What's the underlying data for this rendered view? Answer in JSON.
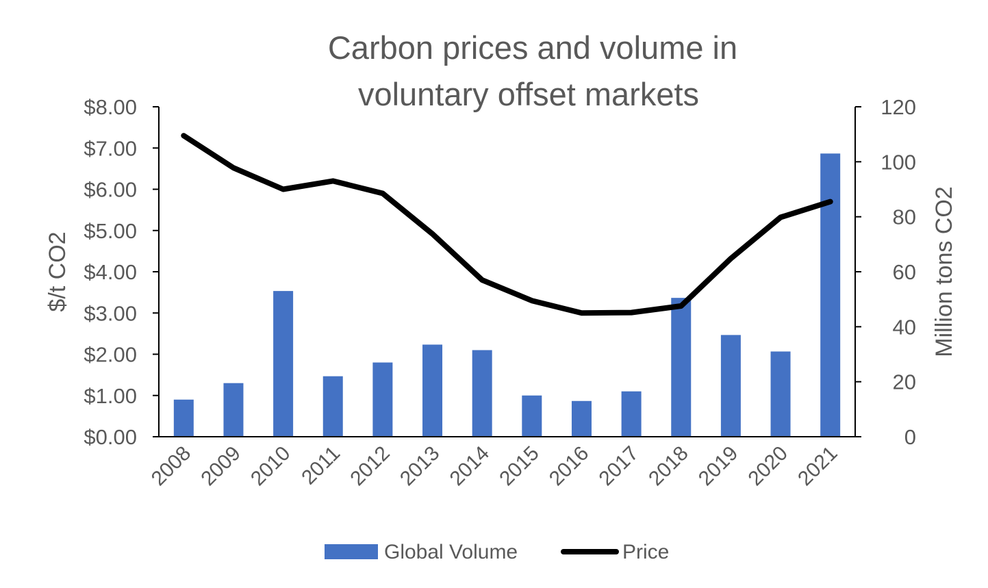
{
  "chart_data": {
    "type": "bar",
    "title": "Carbon prices and volume in voluntary offset markets",
    "categories": [
      "2008",
      "2009",
      "2010",
      "2011",
      "2012",
      "2013",
      "2014",
      "2015",
      "2016",
      "2017",
      "2018",
      "2019",
      "2020",
      "2021"
    ],
    "series": [
      {
        "name": "Global Volume",
        "type": "bar",
        "axis": "right",
        "color": "#4472C4",
        "values": [
          13.5,
          19.5,
          53,
          22,
          27,
          33.5,
          31.5,
          15,
          13,
          16.5,
          50.5,
          37,
          31,
          103
        ]
      },
      {
        "name": "Price",
        "type": "line",
        "axis": "left",
        "color": "#000000",
        "values": [
          7.3,
          6.52,
          6.0,
          6.2,
          5.9,
          4.92,
          3.8,
          3.3,
          3.0,
          3.01,
          3.17,
          4.32,
          5.32,
          5.7
        ]
      }
    ],
    "y_left": {
      "label": "$/t CO2",
      "ylim": [
        0,
        8
      ],
      "ticks": [
        "$0.00",
        "$1.00",
        "$2.00",
        "$3.00",
        "$4.00",
        "$5.00",
        "$6.00",
        "$7.00",
        "$8.00"
      ]
    },
    "y_right": {
      "label": "Million tons CO2",
      "ylim": [
        0,
        120
      ],
      "ticks": [
        "0",
        "20",
        "40",
        "60",
        "80",
        "100",
        "120"
      ]
    },
    "grid": false,
    "legend_position": "bottom"
  }
}
